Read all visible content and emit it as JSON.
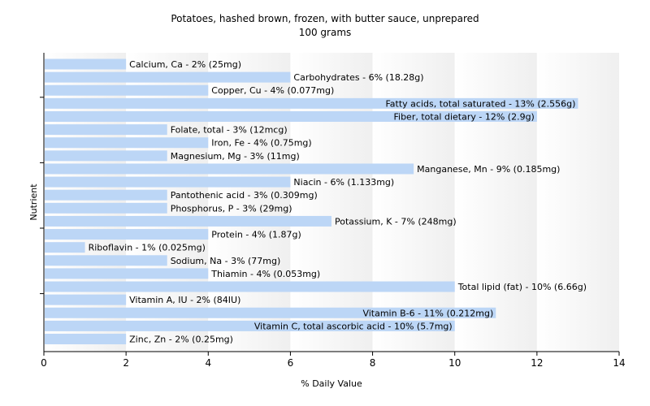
{
  "chart_data": {
    "type": "bar",
    "orientation": "horizontal",
    "title": "Potatoes, hashed brown, frozen, with butter sauce, unprepared",
    "subtitle": "100 grams",
    "xlabel": "% Daily Value",
    "ylabel": "Nutrient",
    "xlim": [
      0,
      14
    ],
    "xticks": [
      0,
      2,
      4,
      6,
      8,
      10,
      12,
      14
    ],
    "grid": "vertical bands",
    "bar_color": "#bcd6f6",
    "categories": [
      "Calcium, Ca",
      "Carbohydrates",
      "Copper, Cu",
      "Fatty acids, total saturated",
      "Fiber, total dietary",
      "Folate, total",
      "Iron, Fe",
      "Magnesium, Mg",
      "Manganese, Mn",
      "Niacin",
      "Pantothenic acid",
      "Phosphorus, P",
      "Potassium, K",
      "Protein",
      "Riboflavin",
      "Sodium, Na",
      "Thiamin",
      "Total lipid (fat)",
      "Vitamin A, IU",
      "Vitamin B-6",
      "Vitamin C, total ascorbic acid",
      "Zinc, Zn"
    ],
    "values": [
      2,
      6,
      4,
      13,
      12,
      3,
      4,
      3,
      9,
      6,
      3,
      3,
      7,
      4,
      1,
      3,
      4,
      10,
      2,
      11,
      10,
      2
    ],
    "labels": [
      "Calcium, Ca - 2% (25mg)",
      "Carbohydrates - 6% (18.28g)",
      "Copper, Cu - 4% (0.077mg)",
      "Fatty acids, total saturated - 13% (2.556g)",
      "Fiber, total dietary - 12% (2.9g)",
      "Folate, total - 3% (12mcg)",
      "Iron, Fe - 4% (0.75mg)",
      "Magnesium, Mg - 3% (11mg)",
      "Manganese, Mn - 9% (0.185mg)",
      "Niacin - 6% (1.133mg)",
      "Pantothenic acid - 3% (0.309mg)",
      "Phosphorus, P - 3% (29mg)",
      "Potassium, K - 7% (248mg)",
      "Protein - 4% (1.87g)",
      "Riboflavin - 1% (0.025mg)",
      "Sodium, Na - 3% (77mg)",
      "Thiamin - 4% (0.053mg)",
      "Total lipid (fat) - 10% (6.66g)",
      "Vitamin A, IU - 2% (84IU)",
      "Vitamin B-6 - 11% (0.212mg)",
      "Vitamin C, total ascorbic acid - 10% (5.7mg)",
      "Zinc, Zn - 2% (0.25mg)"
    ],
    "label_inside": [
      false,
      false,
      false,
      true,
      true,
      false,
      false,
      false,
      false,
      false,
      false,
      false,
      false,
      false,
      false,
      false,
      false,
      false,
      false,
      true,
      true,
      false
    ]
  }
}
